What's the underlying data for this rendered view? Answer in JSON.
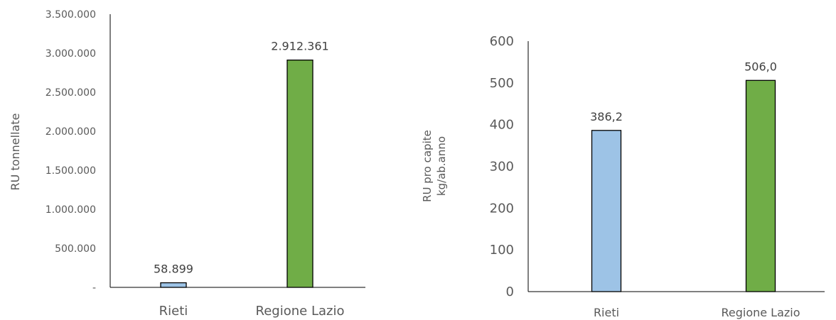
{
  "chart_data": [
    {
      "type": "bar",
      "categories": [
        "Rieti",
        "Regione Lazio"
      ],
      "values": [
        58899,
        2912361
      ],
      "value_labels": [
        "58.899",
        "2.912.361"
      ],
      "ylabel": "RU tonnellate",
      "ylim": [
        0,
        3500000
      ],
      "y_ticks": [
        0,
        500000,
        1000000,
        1500000,
        2000000,
        2500000,
        3000000,
        3500000
      ],
      "y_tick_labels": [
        "-",
        "500.000",
        "1.000.000",
        "1.500.000",
        "2.000.000",
        "2.500.000",
        "3.000.000",
        "3.500.000"
      ],
      "colors": [
        "#9dc3e6",
        "#70ad47"
      ],
      "grid": false,
      "legend": "none"
    },
    {
      "type": "bar",
      "categories": [
        "Rieti",
        "Regione Lazio"
      ],
      "values": [
        386.2,
        506.0
      ],
      "value_labels": [
        "386,2",
        "506,0"
      ],
      "ylabel_lines": [
        "RU pro capite",
        "kg/ab.anno"
      ],
      "ylim": [
        0,
        600
      ],
      "y_ticks": [
        0,
        100,
        200,
        300,
        400,
        500,
        600
      ],
      "y_tick_labels": [
        "0",
        "100",
        "200",
        "300",
        "400",
        "500",
        "600"
      ],
      "colors": [
        "#9dc3e6",
        "#70ad47"
      ],
      "grid": false,
      "legend": "none"
    }
  ]
}
